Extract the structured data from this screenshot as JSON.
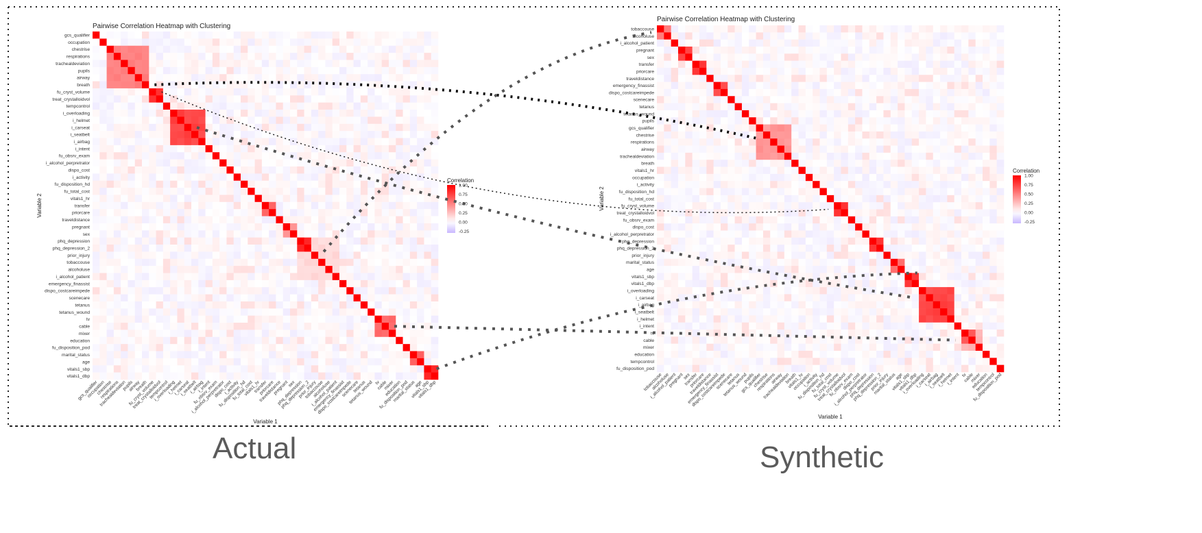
{
  "captions": {
    "left": "Actual",
    "right": "Synthetic"
  },
  "chart_data": [
    {
      "type": "heatmap",
      "title": "Pairwise Correlation Heatmap with Clustering",
      "xlabel": "Variable 1",
      "ylabel": "Variable 2",
      "legend": {
        "title": "Correlation",
        "ticks": [
          "1.00",
          "0.75",
          "0.50",
          "0.25",
          "0.00",
          "-0.25"
        ],
        "range": [
          -0.3,
          1.0
        ],
        "placement": "right"
      },
      "colors": {
        "high": "#ff0000",
        "mid": "#ffffff",
        "low": "#c9b8ff"
      },
      "variables": [
        "gcs_qualifier",
        "occupation",
        "chestrise",
        "respirations",
        "trachealdeviation",
        "pupils",
        "airway",
        "breath",
        "fu_cryst_volume",
        "treat_crystalloidvol",
        "tempcontrol",
        "i_overloading",
        "i_helmet",
        "i_carseat",
        "i_seatbelt",
        "i_airbag",
        "i_intent",
        "fu_obsrv_exam",
        "i_alcohol_perpretrator",
        "dispo_cost",
        "i_activity",
        "fu_disposition_hd",
        "fu_total_cost",
        "vitals1_hr",
        "transfer",
        "priorcare",
        "traveldistance",
        "pregnant",
        "sex",
        "phq_depression",
        "phq_depression_2",
        "prior_injury",
        "tobaccouse",
        "alcoholuse",
        "i_alcohol_patient",
        "emergency_finassist",
        "dispo_costcareimpede",
        "scenecare",
        "tetanus",
        "tetanus_wound",
        "tv",
        "cable",
        "mixer",
        "education",
        "fu_disposition_pod",
        "marital_status",
        "age",
        "vitals1_sbp",
        "vitals1_dbp"
      ],
      "blocks": [
        {
          "vars": [
            "chestrise",
            "respirations",
            "trachealdeviation",
            "pupils",
            "airway",
            "breath"
          ],
          "value": 0.5
        },
        {
          "vars": [
            "fu_cryst_volume",
            "treat_crystalloidvol"
          ],
          "value": 0.8
        },
        {
          "vars": [
            "i_overloading",
            "i_helmet",
            "i_carseat",
            "i_seatbelt",
            "i_airbag"
          ],
          "value": 0.72
        },
        {
          "vars": [
            "transfer",
            "priorcare"
          ],
          "value": 0.6
        },
        {
          "vars": [
            "pregnant",
            "sex"
          ],
          "value": 0.4
        },
        {
          "vars": [
            "phq_depression",
            "phq_depression_2"
          ],
          "value": 0.8
        },
        {
          "vars": [
            "phq_depression",
            "phq_depression_2",
            "prior_injury",
            "tobaccouse",
            "alcoholuse",
            "i_alcohol_patient"
          ],
          "value": 0.15
        },
        {
          "vars": [
            "tv",
            "cable",
            "mixer"
          ],
          "value": 0.55
        },
        {
          "vars": [
            "marital_status",
            "age"
          ],
          "value": 0.6
        },
        {
          "vars": [
            "vitals1_sbp",
            "vitals1_dbp"
          ],
          "value": 0.85
        }
      ]
    },
    {
      "type": "heatmap",
      "title": "Pairwise Correlation Heatmap with Clustering",
      "xlabel": "Variable 1",
      "ylabel": "Variable 2",
      "legend": {
        "title": "Correlation",
        "ticks": [
          "1.00",
          "0.75",
          "0.50",
          "0.25",
          "0.00",
          "-0.25"
        ],
        "range": [
          -0.3,
          1.0
        ],
        "placement": "right"
      },
      "colors": {
        "high": "#ff0000",
        "mid": "#ffffff",
        "low": "#c9b8ff"
      },
      "variables": [
        "tobaccouse",
        "alcoholuse",
        "i_alcohol_patient",
        "pregnant",
        "sex",
        "transfer",
        "priorcare",
        "traveldistance",
        "emergency_finassist",
        "dispo_costcareimpede",
        "scenecare",
        "tetanus",
        "tetanus_wound",
        "pupils",
        "gcs_qualifier",
        "chestrise",
        "respirations",
        "airway",
        "trachealdeviation",
        "breath",
        "vitals1_hr",
        "occupation",
        "i_activity",
        "fu_disposition_hd",
        "fu_total_cost",
        "fu_cryst_volume",
        "treat_crystalloidvol",
        "fu_obsrv_exam",
        "dispo_cost",
        "i_alcohol_perpretrator",
        "phq_depression",
        "phq_depression_2",
        "prior_injury",
        "marital_status",
        "age",
        "vitals1_sbp",
        "vitals1_dbp",
        "i_overloading",
        "i_carseat",
        "i_airbag",
        "i_seatbelt",
        "i_helmet",
        "i_intent",
        "tv",
        "cable",
        "mixer",
        "education",
        "tempcontrol",
        "fu_disposition_pod"
      ],
      "blocks": [
        {
          "vars": [
            "tobaccouse",
            "alcoholuse"
          ],
          "value": 0.5
        },
        {
          "vars": [
            "pregnant",
            "sex"
          ],
          "value": 0.75
        },
        {
          "vars": [
            "transfer",
            "priorcare"
          ],
          "value": 0.78
        },
        {
          "vars": [
            "emergency_finassist",
            "dispo_costcareimpede"
          ],
          "value": 0.7
        },
        {
          "vars": [
            "gcs_qualifier",
            "chestrise",
            "respirations",
            "airway",
            "trachealdeviation"
          ],
          "value": 0.4
        },
        {
          "vars": [
            "fu_cryst_volume",
            "treat_crystalloidvol"
          ],
          "value": 0.8
        },
        {
          "vars": [
            "phq_depression",
            "phq_depression_2"
          ],
          "value": 0.82
        },
        {
          "vars": [
            "marital_status",
            "age"
          ],
          "value": 0.6
        },
        {
          "vars": [
            "vitals1_sbp",
            "vitals1_dbp"
          ],
          "value": 0.8
        },
        {
          "vars": [
            "i_overloading",
            "i_carseat",
            "i_airbag",
            "i_seatbelt",
            "i_helmet"
          ],
          "value": 0.72
        },
        {
          "vars": [
            "tv",
            "cable"
          ],
          "value": 0.6
        },
        {
          "vars": [
            "tv",
            "cable",
            "mixer"
          ],
          "value": 0.3
        }
      ]
    }
  ]
}
